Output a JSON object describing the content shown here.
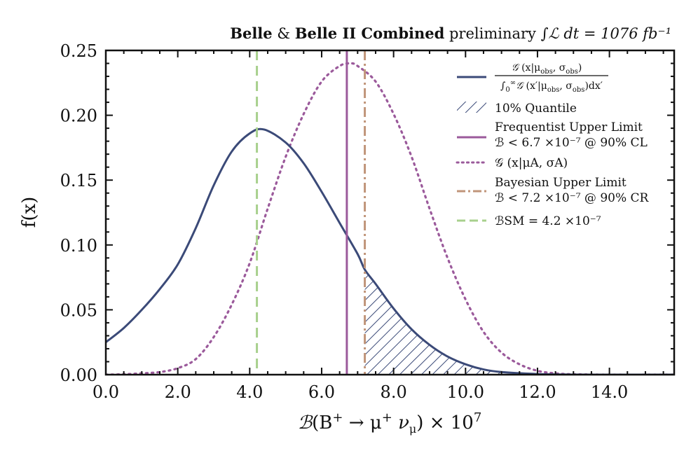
{
  "title": {
    "part1": "Belle",
    "amp": " & ",
    "part2": "Belle II Combined",
    "part3": " preliminary ",
    "lumi": "∫ℒ dt = 1076 fb⁻¹"
  },
  "chart_data": {
    "type": "line",
    "xlabel": "ℬ(B⁺ → μ⁺ ν_μ) × 10⁷",
    "ylabel": "f(x)",
    "xlim": [
      0,
      15.8
    ],
    "ylim": [
      0,
      0.25
    ],
    "x_ticks": [
      "0.0",
      "2.0",
      "4.0",
      "6.0",
      "8.0",
      "10.0",
      "12.0",
      "14.0"
    ],
    "x_tick_values": [
      0,
      2,
      4,
      6,
      8,
      10,
      12,
      14
    ],
    "y_ticks": [
      "0.00",
      "0.05",
      "0.10",
      "0.15",
      "0.20",
      "0.25"
    ],
    "y_tick_values": [
      0,
      0.05,
      0.1,
      0.15,
      0.2,
      0.25
    ],
    "legend_position": "top-right",
    "series": [
      {
        "name": "observed posterior",
        "label_main": "𝒢 (x|μobs, σobs)",
        "label_denominator": "∫₀^∞ 𝒢 (x′|μobs, σobs)dx′",
        "style": "solid",
        "color": "#3b4a78",
        "x": [
          0,
          0.5,
          1,
          1.5,
          2,
          2.5,
          3,
          3.5,
          4,
          4.4,
          5,
          5.5,
          6,
          6.5,
          7,
          7.2,
          7.5,
          8,
          8.5,
          9,
          9.5,
          10,
          10.5,
          11,
          12,
          13,
          14,
          15,
          15.8
        ],
        "y": [
          0.025,
          0.036,
          0.05,
          0.066,
          0.085,
          0.113,
          0.146,
          0.172,
          0.186,
          0.189,
          0.179,
          0.163,
          0.141,
          0.117,
          0.093,
          0.081,
          0.07,
          0.051,
          0.035,
          0.023,
          0.014,
          0.008,
          0.004,
          0.002,
          0.0005,
          0.0001,
          0,
          0,
          0
        ]
      },
      {
        "name": "alternative",
        "label_main": "𝒢 (x|μA, σA)",
        "style": "dotted",
        "color": "#9b5a9b",
        "x": [
          0,
          0.5,
          1,
          1.5,
          2,
          2.5,
          3,
          3.5,
          4,
          4.5,
          5,
          5.5,
          6,
          6.5,
          6.8,
          7,
          7.5,
          8,
          8.5,
          9,
          9.5,
          10,
          10.5,
          11,
          11.5,
          12,
          12.5,
          13,
          14,
          15.8
        ],
        "y": [
          0,
          0.0003,
          0.001,
          0.002,
          0.005,
          0.012,
          0.029,
          0.054,
          0.086,
          0.128,
          0.168,
          0.201,
          0.226,
          0.238,
          0.24,
          0.238,
          0.226,
          0.201,
          0.168,
          0.128,
          0.09,
          0.058,
          0.033,
          0.017,
          0.008,
          0.003,
          0.001,
          0.0003,
          0,
          0
        ]
      }
    ],
    "vertical_lines": [
      {
        "name": "frequentist",
        "x": 6.7,
        "style": "solid",
        "color": "#9b5a9b"
      },
      {
        "name": "bayesian",
        "x": 7.2,
        "style": "dashdot",
        "color": "#c0957a"
      },
      {
        "name": "sm",
        "x": 4.2,
        "style": "dashed",
        "color": "#a8d08d"
      }
    ],
    "quantile_fill": {
      "from_x": 7.2,
      "to_x": 11.2,
      "color": "#3b4a78"
    },
    "legend": [
      {
        "key": "posterior",
        "label": ""
      },
      {
        "key": "quantile",
        "label": "10% Quantile"
      },
      {
        "key": "frequentist",
        "label": "Frequentist Upper Limit",
        "label2": "ℬ < 6.7 ×10⁻⁷ @ 90% CL"
      },
      {
        "key": "alternative",
        "label": "𝒢 (x|μA, σA)"
      },
      {
        "key": "bayesian",
        "label": "Bayesian Upper Limit",
        "label2": "ℬ < 7.2 ×10⁻⁷ @ 90% CR"
      },
      {
        "key": "sm",
        "label": "ℬSM = 4.2 ×10⁻⁷"
      }
    ]
  },
  "colors": {
    "navy": "#3b4a78",
    "purple": "#9b5a9b",
    "tan": "#c0957a",
    "green": "#a8d08d"
  }
}
